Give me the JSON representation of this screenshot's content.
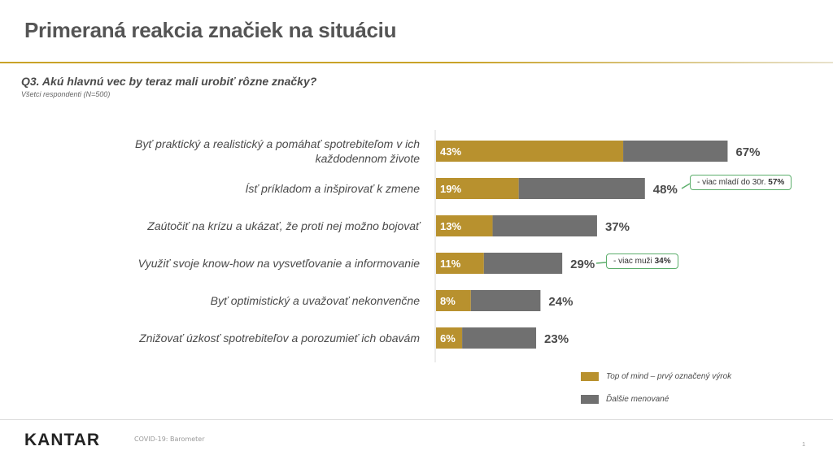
{
  "title": "Primeraná reakcia značiek na situáciu",
  "question": "Q3. Akú hlavnú vec by teraz mali urobiť rôzne značky?",
  "respondents": "Všetci respondenti (N=500)",
  "colors": {
    "top_of_mind": "#b8912e",
    "other": "#707070",
    "accent": "#c9a227",
    "callout_border": "#5cae6b"
  },
  "chart_data": {
    "type": "bar",
    "orientation": "horizontal",
    "stacked": true,
    "categories": [
      [
        "Byť praktický a realistický a pomáhať spotrebiteľom v ich",
        "každodennom živote"
      ],
      [
        "Ísť príkladom a inšpirovať k zmene"
      ],
      [
        "Zaútočiť na krízu a ukázať, že proti nej možno bojovať"
      ],
      [
        "Využiť svoje know-how na vysvetľovanie a informovanie"
      ],
      [
        "Byť optimistický a uvažovať nekonvenčne"
      ],
      [
        "Znižovať úzkosť spotrebiteľov a porozumieť ich obavám"
      ]
    ],
    "series": [
      {
        "name": "Top of mind – prvý označený výrok",
        "values": [
          43,
          19,
          13,
          11,
          8,
          6
        ],
        "labels": [
          "43%",
          "19%",
          "13%",
          "11%",
          "8%",
          "6%"
        ]
      },
      {
        "name": "Ďalšie menované",
        "values": [
          24,
          29,
          24,
          18,
          16,
          17
        ]
      }
    ],
    "totals": [
      67,
      48,
      37,
      29,
      24,
      23
    ],
    "total_labels": [
      "67%",
      "48%",
      "37%",
      "29%",
      "24%",
      "23%"
    ],
    "xlim": [
      0,
      100
    ],
    "grid": false,
    "legend": "bottom-right",
    "annotations": [
      {
        "category_index": 1,
        "text": "- viac mladí do 30r.",
        "value": "57%"
      },
      {
        "category_index": 3,
        "text": "- viac muži",
        "value": "34%"
      }
    ]
  },
  "footer": {
    "logo": "KANTAR",
    "note": "COVID-19: Barometer",
    "page": "1"
  }
}
